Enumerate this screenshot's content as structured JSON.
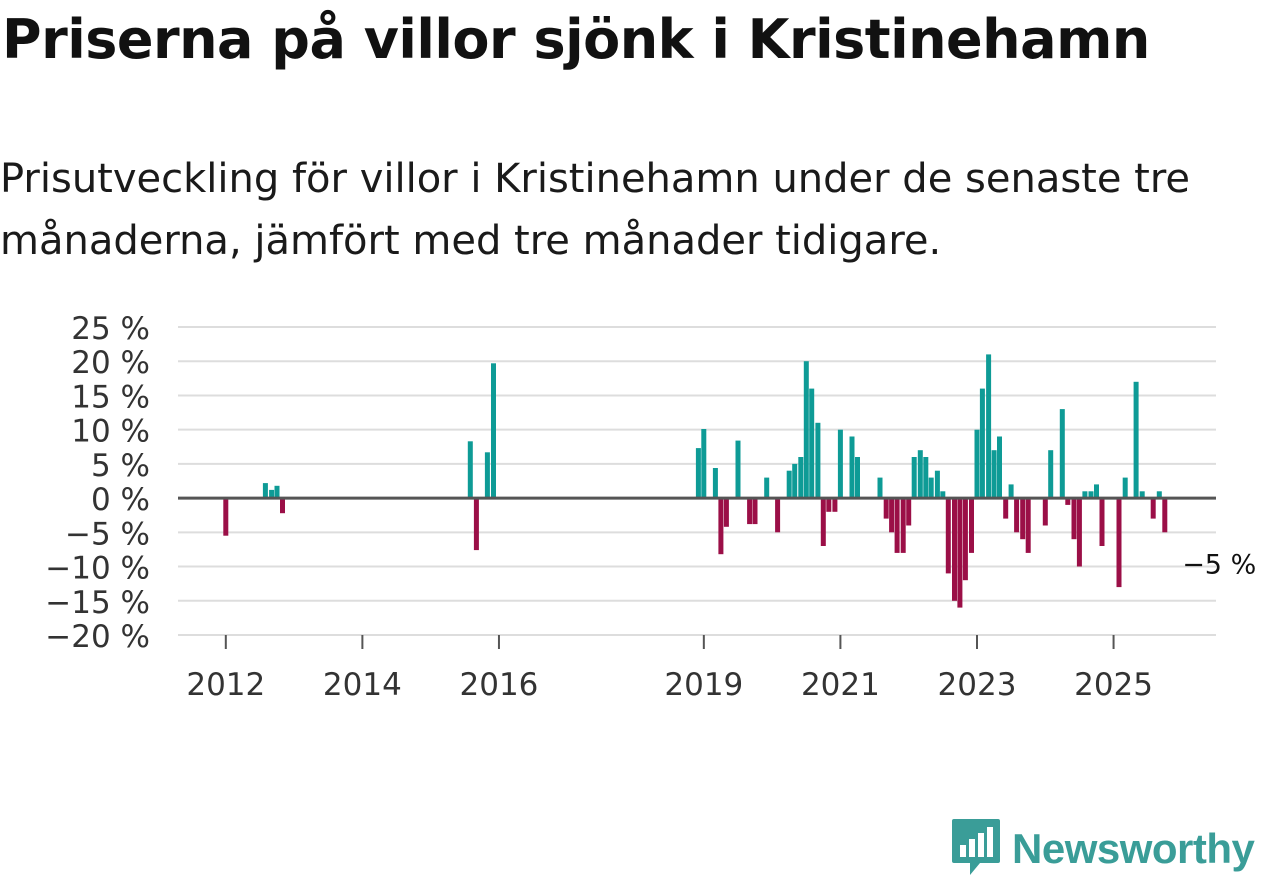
{
  "title": "Priserna på villor sjönk i Kristinehamn",
  "subtitle": "Prisutveckling för villor i Kristinehamn under de senaste tre månaderna, jämfört med tre månader tidigare.",
  "brand": {
    "name": "Newsworthy",
    "icon": "bar-chart-logo-icon",
    "color": "#3a9d98"
  },
  "colors": {
    "positive": "#0e9b96",
    "negative": "#9b0f47",
    "grid": "#dddddd",
    "zero_line": "#555555",
    "text": "#333333"
  },
  "chart_data": {
    "type": "bar",
    "title": "",
    "xlabel": "",
    "ylabel": "",
    "ylim": [
      -20,
      25
    ],
    "y_ticks": [
      25,
      20,
      15,
      10,
      5,
      0,
      -5,
      -10,
      -15,
      -20
    ],
    "y_tick_labels": [
      "25 %",
      "20 %",
      "15 %",
      "10 %",
      "5 %",
      "0 %",
      "−5 %",
      "−10 %",
      "−15 %",
      "−20 %"
    ],
    "x_range": [
      2011.3,
      2026.5
    ],
    "x_ticks": [
      2012,
      2014,
      2016,
      2019,
      2021,
      2023,
      2025
    ],
    "x_tick_labels": [
      "2012",
      "2014",
      "2016",
      "2019",
      "2021",
      "2023",
      "2025"
    ],
    "annotation": {
      "text": "−5 %",
      "x": 2025.8,
      "y": -5
    },
    "points": [
      {
        "x": 2012.0,
        "value": -5.5
      },
      {
        "x": 2012.58,
        "value": 2.2
      },
      {
        "x": 2012.67,
        "value": 1.2
      },
      {
        "x": 2012.75,
        "value": 1.8
      },
      {
        "x": 2012.83,
        "value": -2.2
      },
      {
        "x": 2015.58,
        "value": 8.3
      },
      {
        "x": 2015.67,
        "value": -7.6
      },
      {
        "x": 2015.83,
        "value": 6.7
      },
      {
        "x": 2015.92,
        "value": 19.7
      },
      {
        "x": 2018.92,
        "value": 7.3
      },
      {
        "x": 2019.0,
        "value": 10.1
      },
      {
        "x": 2019.17,
        "value": 4.4
      },
      {
        "x": 2019.25,
        "value": -8.2
      },
      {
        "x": 2019.33,
        "value": -4.2
      },
      {
        "x": 2019.5,
        "value": 8.4
      },
      {
        "x": 2019.67,
        "value": -3.8
      },
      {
        "x": 2019.75,
        "value": -3.8
      },
      {
        "x": 2019.92,
        "value": 3.0
      },
      {
        "x": 2020.08,
        "value": -5.0
      },
      {
        "x": 2020.25,
        "value": 4.0
      },
      {
        "x": 2020.33,
        "value": 5.0
      },
      {
        "x": 2020.42,
        "value": 6.0
      },
      {
        "x": 2020.5,
        "value": 20.0
      },
      {
        "x": 2020.58,
        "value": 16.0
      },
      {
        "x": 2020.67,
        "value": 11.0
      },
      {
        "x": 2020.75,
        "value": -7.0
      },
      {
        "x": 2020.83,
        "value": -2.0
      },
      {
        "x": 2020.92,
        "value": -2.0
      },
      {
        "x": 2021.0,
        "value": 10.0
      },
      {
        "x": 2021.17,
        "value": 9.0
      },
      {
        "x": 2021.25,
        "value": 6.0
      },
      {
        "x": 2021.58,
        "value": 3.0
      },
      {
        "x": 2021.67,
        "value": -3.0
      },
      {
        "x": 2021.75,
        "value": -5.0
      },
      {
        "x": 2021.83,
        "value": -8.0
      },
      {
        "x": 2021.92,
        "value": -8.0
      },
      {
        "x": 2022.0,
        "value": -4.0
      },
      {
        "x": 2022.08,
        "value": 6.0
      },
      {
        "x": 2022.17,
        "value": 7.0
      },
      {
        "x": 2022.25,
        "value": 6.0
      },
      {
        "x": 2022.33,
        "value": 3.0
      },
      {
        "x": 2022.42,
        "value": 4.0
      },
      {
        "x": 2022.5,
        "value": 1.0
      },
      {
        "x": 2022.58,
        "value": -11.0
      },
      {
        "x": 2022.67,
        "value": -15.0
      },
      {
        "x": 2022.75,
        "value": -16.0
      },
      {
        "x": 2022.83,
        "value": -12.0
      },
      {
        "x": 2022.92,
        "value": -8.0
      },
      {
        "x": 2023.0,
        "value": 10.0
      },
      {
        "x": 2023.08,
        "value": 16.0
      },
      {
        "x": 2023.17,
        "value": 21.0
      },
      {
        "x": 2023.25,
        "value": 7.0
      },
      {
        "x": 2023.33,
        "value": 9.0
      },
      {
        "x": 2023.42,
        "value": -3.0
      },
      {
        "x": 2023.5,
        "value": 2.0
      },
      {
        "x": 2023.58,
        "value": -5.0
      },
      {
        "x": 2023.67,
        "value": -6.0
      },
      {
        "x": 2023.75,
        "value": -8.0
      },
      {
        "x": 2024.0,
        "value": -4.0
      },
      {
        "x": 2024.08,
        "value": 7.0
      },
      {
        "x": 2024.25,
        "value": 13.0
      },
      {
        "x": 2024.33,
        "value": -1.0
      },
      {
        "x": 2024.42,
        "value": -6.0
      },
      {
        "x": 2024.5,
        "value": -10.0
      },
      {
        "x": 2024.58,
        "value": 1.0
      },
      {
        "x": 2024.67,
        "value": 1.0
      },
      {
        "x": 2024.75,
        "value": 2.0
      },
      {
        "x": 2024.83,
        "value": -7.0
      },
      {
        "x": 2025.08,
        "value": -13.0
      },
      {
        "x": 2025.17,
        "value": 3.0
      },
      {
        "x": 2025.33,
        "value": 17.0
      },
      {
        "x": 2025.42,
        "value": 1.0
      },
      {
        "x": 2025.58,
        "value": -3.0
      },
      {
        "x": 2025.67,
        "value": 1.0
      },
      {
        "x": 2025.75,
        "value": -5.0
      }
    ]
  }
}
